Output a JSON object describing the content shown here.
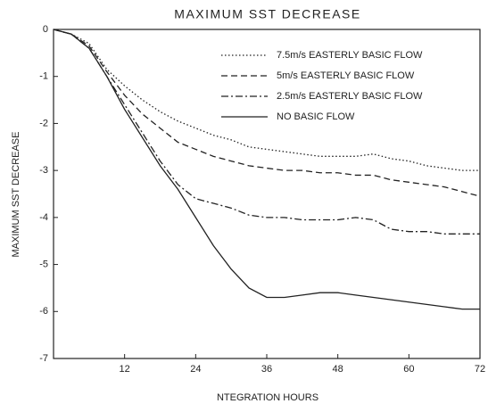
{
  "chart_data": {
    "type": "line",
    "title": "MAXIMUM SST DECREASE",
    "x_label": "NTEGRATION HOURS",
    "y_label": "MAXIMUM SST DECREASE",
    "x": [
      0,
      3,
      6,
      9,
      12,
      15,
      18,
      21,
      24,
      27,
      30,
      33,
      36,
      39,
      42,
      45,
      48,
      51,
      54,
      57,
      60,
      63,
      66,
      69,
      72
    ],
    "series": [
      {
        "name": "7.5m/s EASTERLY BASIC FLOW",
        "color": "#222",
        "dash": "dotted",
        "values": [
          0,
          -0.1,
          -0.3,
          -0.85,
          -1.2,
          -1.5,
          -1.75,
          -1.95,
          -2.1,
          -2.25,
          -2.35,
          -2.5,
          -2.55,
          -2.6,
          -2.65,
          -2.7,
          -2.7,
          -2.7,
          -2.65,
          -2.75,
          -2.8,
          -2.9,
          -2.95,
          -3.0,
          -3.0
        ]
      },
      {
        "name": "5m/s EASTERLY BASIC FLOW",
        "color": "#222",
        "dash": "dashed",
        "values": [
          0,
          -0.1,
          -0.35,
          -0.9,
          -1.4,
          -1.8,
          -2.1,
          -2.4,
          -2.55,
          -2.7,
          -2.8,
          -2.9,
          -2.95,
          -3.0,
          -3.0,
          -3.05,
          -3.05,
          -3.1,
          -3.1,
          -3.2,
          -3.25,
          -3.3,
          -3.35,
          -3.45,
          -3.55
        ]
      },
      {
        "name": "2.5m/s EASTERLY BASIC FLOW",
        "color": "#222",
        "dash": "dashdot",
        "values": [
          0,
          -0.1,
          -0.4,
          -1.0,
          -1.6,
          -2.2,
          -2.8,
          -3.3,
          -3.6,
          -3.7,
          -3.8,
          -3.95,
          -4.0,
          -4.0,
          -4.05,
          -4.05,
          -4.05,
          -4.0,
          -4.05,
          -4.25,
          -4.3,
          -4.3,
          -4.35,
          -4.35,
          -4.35
        ]
      },
      {
        "name": "NO BASIC FLOW",
        "color": "#222",
        "dash": "solid",
        "values": [
          0,
          -0.1,
          -0.4,
          -1.0,
          -1.7,
          -2.3,
          -2.9,
          -3.4,
          -4.0,
          -4.6,
          -5.1,
          -5.5,
          -5.7,
          -5.7,
          -5.65,
          -5.6,
          -5.6,
          -5.65,
          -5.7,
          -5.75,
          -5.8,
          -5.85,
          -5.9,
          -5.95,
          -5.95
        ]
      }
    ],
    "xlim": [
      0,
      72
    ],
    "xticks": [
      12,
      24,
      36,
      48,
      60,
      72
    ],
    "ylim": [
      -7,
      0
    ],
    "yticks": [
      0,
      -1,
      -2,
      -3,
      -4,
      -5,
      -6,
      -7
    ],
    "legend": "upper right"
  }
}
